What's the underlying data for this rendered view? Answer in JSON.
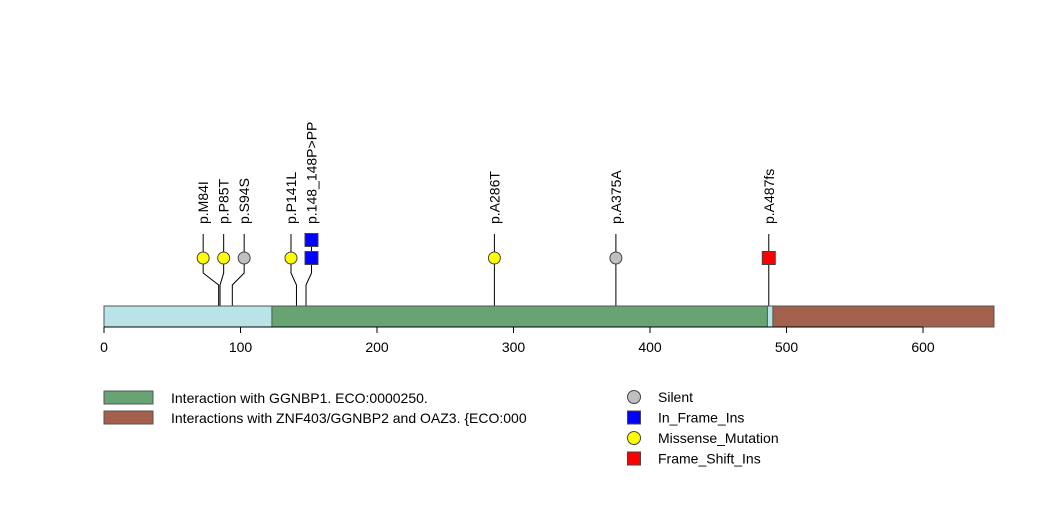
{
  "chart_data": {
    "type": "lollipop",
    "protein_length": 652,
    "xlim": [
      0,
      652
    ],
    "x_ticks": [
      0,
      100,
      200,
      300,
      400,
      500,
      600
    ],
    "backbone_color": "#b9e3e7",
    "domains": [
      {
        "name": "Interaction with GGNBP1. ECO:0000250.",
        "start": 123,
        "end": 486,
        "color": "#68a473"
      },
      {
        "name": "Interactions with ZNF403/GGNBP2 and OAZ3. {ECO:000",
        "start": 490,
        "end": 652,
        "color": "#a3604d"
      }
    ],
    "mutations": [
      {
        "label": "p.M84I",
        "position": 84,
        "type": "Missense_Mutation",
        "count": 1
      },
      {
        "label": "p.P85T",
        "position": 85,
        "type": "Missense_Mutation",
        "count": 1
      },
      {
        "label": "p.S94S",
        "position": 94,
        "type": "Silent",
        "count": 1
      },
      {
        "label": "p.P141L",
        "position": 141,
        "type": "Missense_Mutation",
        "count": 1
      },
      {
        "label": "p.148_148P>PP",
        "position": 148,
        "type": "In_Frame_Ins",
        "count": 2
      },
      {
        "label": "p.A286T",
        "position": 286,
        "type": "Missense_Mutation",
        "count": 1
      },
      {
        "label": "p.A375A",
        "position": 375,
        "type": "Silent",
        "count": 1
      },
      {
        "label": "p.A487fs",
        "position": 487,
        "type": "Frame_Shift_Ins",
        "count": 1
      }
    ],
    "mutation_types": [
      {
        "name": "Silent",
        "shape": "circle",
        "color": "#c0c0c0"
      },
      {
        "name": "In_Frame_Ins",
        "shape": "square",
        "color": "#0000ff"
      },
      {
        "name": "Missense_Mutation",
        "shape": "circle",
        "color": "#ffff00"
      },
      {
        "name": "Frame_Shift_Ins",
        "shape": "square",
        "color": "#ff0000"
      }
    ]
  }
}
